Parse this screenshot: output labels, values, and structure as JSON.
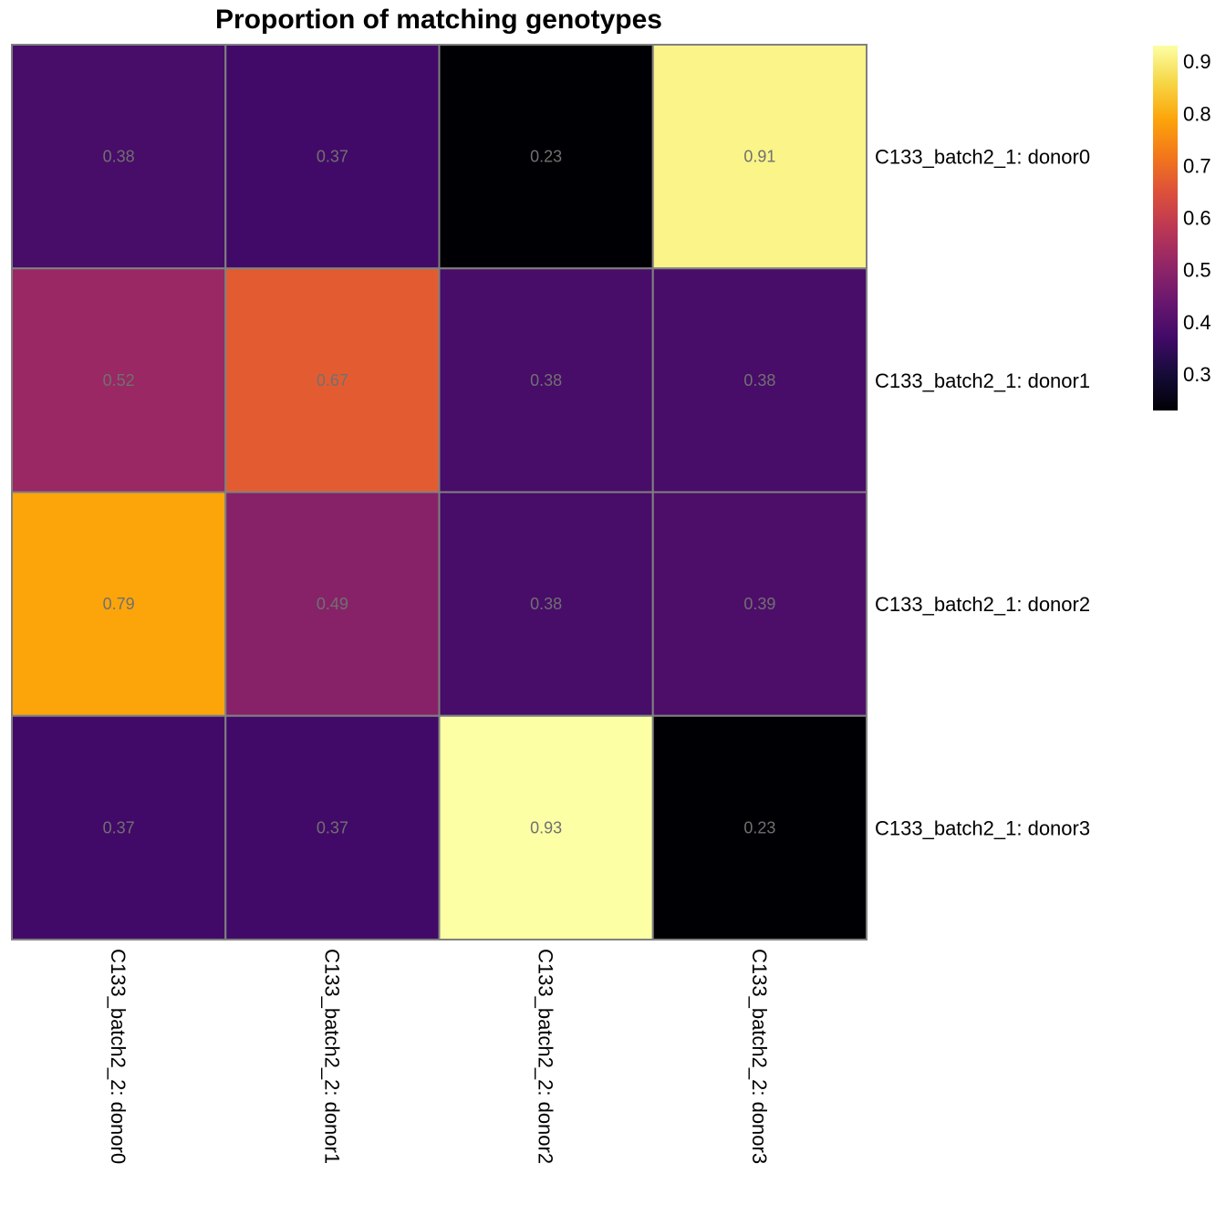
{
  "chart_data": {
    "type": "heatmap",
    "title": "Proportion of matching genotypes",
    "rows": [
      "C133_batch2_1: donor0",
      "C133_batch2_1: donor1",
      "C133_batch2_1: donor2",
      "C133_batch2_1: donor3"
    ],
    "columns": [
      "C133_batch2_2: donor0",
      "C133_batch2_2: donor1",
      "C133_batch2_2: donor2",
      "C133_batch2_2: donor3"
    ],
    "values": [
      [
        0.38,
        0.37,
        0.23,
        0.91
      ],
      [
        0.52,
        0.67,
        0.38,
        0.38
      ],
      [
        0.79,
        0.49,
        0.38,
        0.39
      ],
      [
        0.37,
        0.37,
        0.93,
        0.23
      ]
    ],
    "value_labels": [
      [
        "0.38",
        "0.37",
        "0.23",
        "0.91"
      ],
      [
        "0.52",
        "0.67",
        "0.38",
        "0.38"
      ],
      [
        "0.79",
        "0.49",
        "0.38",
        "0.39"
      ],
      [
        "0.37",
        "0.37",
        "0.93",
        "0.23"
      ]
    ],
    "colorscale": "inferno",
    "color_range": [
      0.23,
      0.93
    ],
    "colorbar_ticks": [
      "0.9",
      "0.8",
      "0.7",
      "0.6",
      "0.5",
      "0.4",
      "0.3"
    ],
    "colorbar_tick_values": [
      0.9,
      0.8,
      0.7,
      0.6,
      0.5,
      0.4,
      0.3
    ],
    "legend_position": "right",
    "cell_border_color": "#808080"
  }
}
